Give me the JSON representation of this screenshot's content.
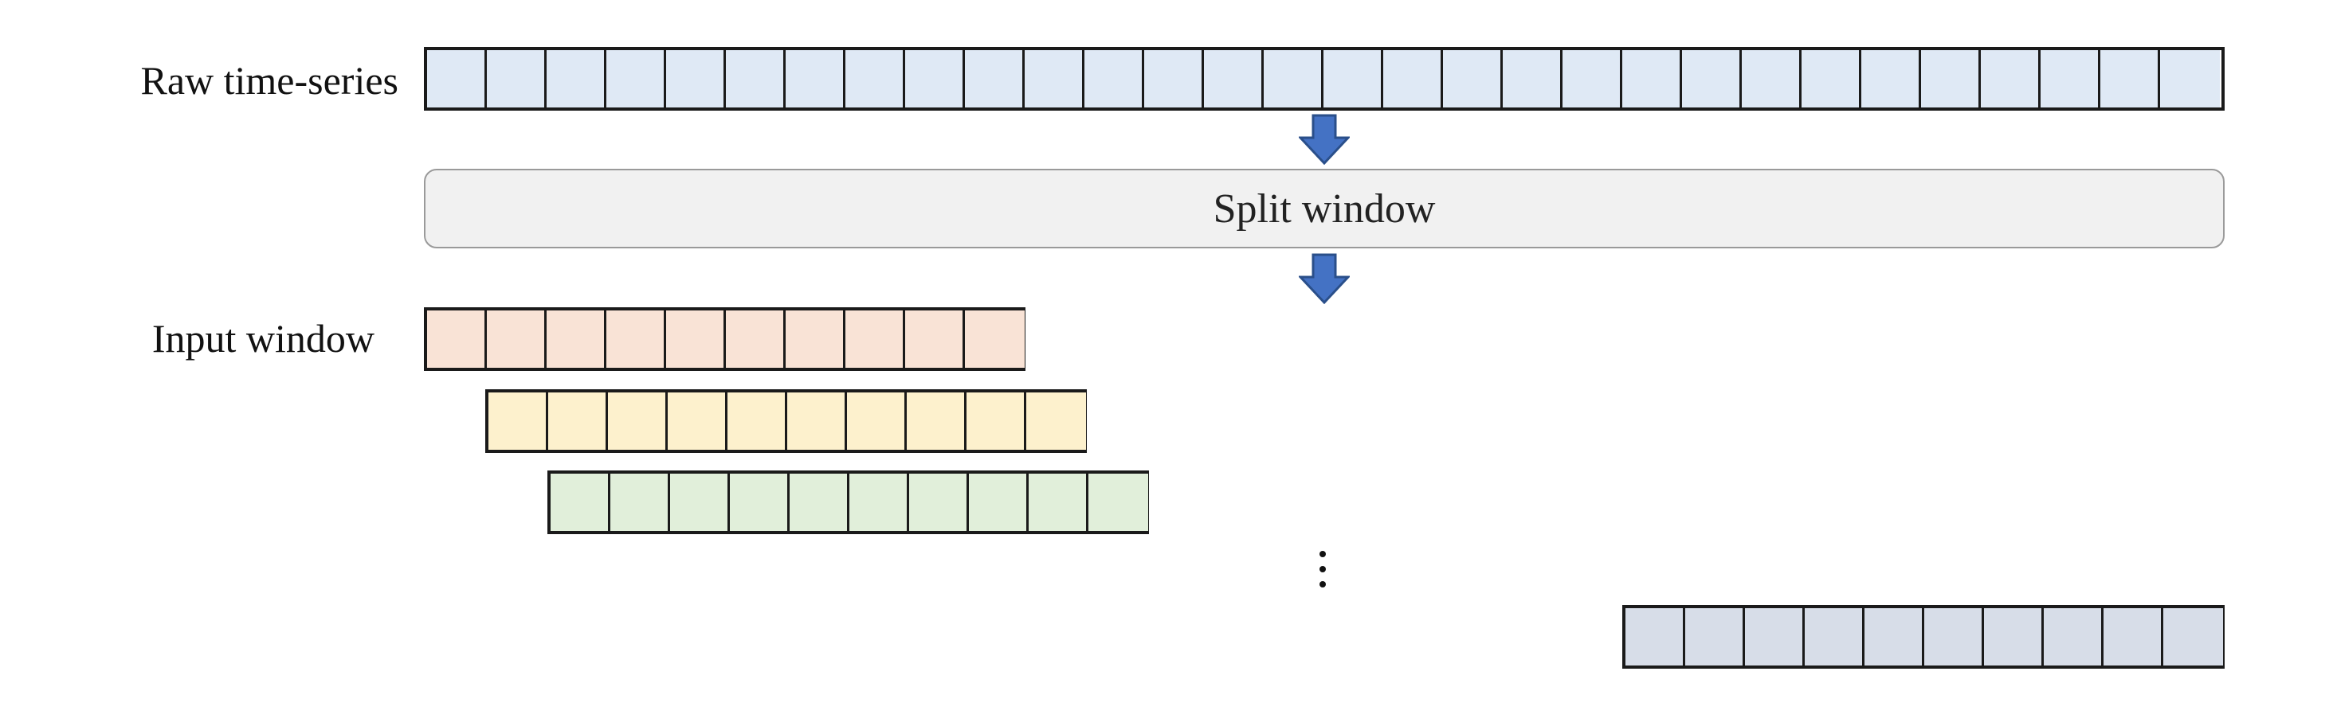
{
  "labels": {
    "raw": "Raw time-series",
    "input": "Input window"
  },
  "split": {
    "label": "Split window"
  },
  "strips": {
    "raw": {
      "cells": 30,
      "color": "#dfe9f5"
    },
    "windows": [
      {
        "cells": 10,
        "color": "#f9e3d6"
      },
      {
        "cells": 10,
        "color": "#fdf1cd"
      },
      {
        "cells": 10,
        "color": "#e1efda"
      },
      {
        "cells": 10,
        "color": "#d7dde8"
      }
    ]
  },
  "colors": {
    "arrow_fill": "#4472c4",
    "arrow_stroke": "#2a4f8a"
  },
  "icons": {
    "arrow": "down-arrow-icon",
    "ellipsis": "vertical-ellipsis-icon"
  }
}
